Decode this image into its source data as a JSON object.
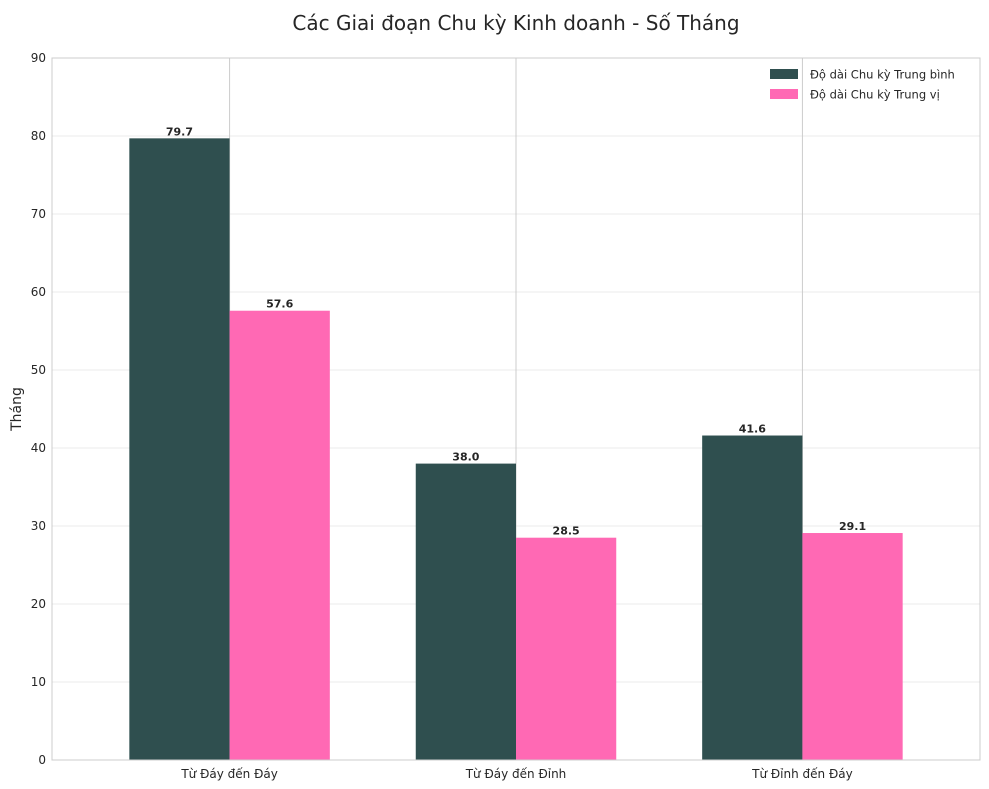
{
  "chart_data": {
    "type": "bar",
    "title": "Các Giai đoạn Chu kỳ Kinh doanh - Số Tháng",
    "xlabel": "",
    "ylabel": "Tháng",
    "categories": [
      "Từ Đáy đến Đáy",
      "Từ Đáy đến Đỉnh",
      "Từ Đỉnh đến Đáy"
    ],
    "series": [
      {
        "name": "Độ dài Chu kỳ Trung bình",
        "values": [
          79.7,
          38.0,
          41.6
        ],
        "color": "#2F4F4F"
      },
      {
        "name": "Độ dài Chu kỳ Trung vị",
        "values": [
          57.6,
          28.5,
          29.1
        ],
        "color": "#FF69B4"
      }
    ],
    "ylim": [
      0,
      90
    ],
    "yticks": [
      0,
      10,
      20,
      30,
      40,
      50,
      60,
      70,
      80,
      90
    ],
    "grid": true,
    "legend_position": "top-right",
    "value_format_decimals": 1
  }
}
